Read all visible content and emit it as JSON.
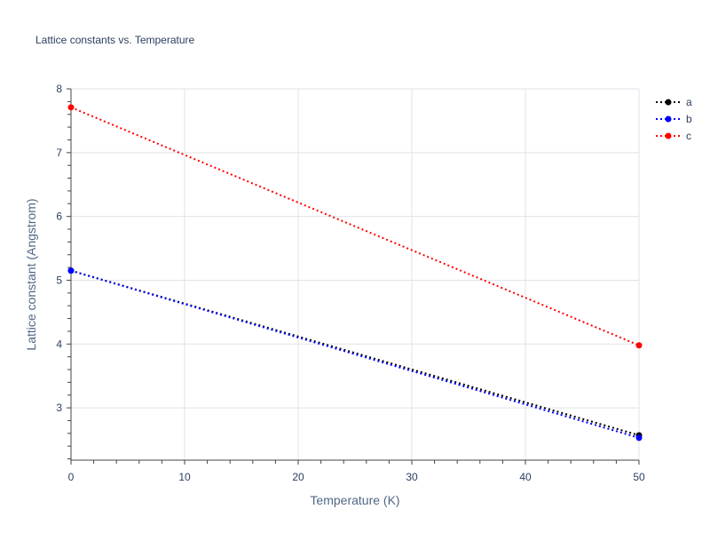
{
  "chart_data": {
    "type": "line",
    "title": "Lattice constants vs. Temperature",
    "xlabel": "Temperature (K)",
    "ylabel": "Lattice constant (Angstrom)",
    "xlim": [
      0,
      50
    ],
    "ylim": [
      2.18,
      8.0
    ],
    "x_ticks": [
      0,
      10,
      20,
      30,
      40,
      50
    ],
    "y_ticks": [
      3,
      4,
      5,
      6,
      7,
      8
    ],
    "grid": true,
    "legend_position": "top-right",
    "line_style": "dotted-with-markers",
    "series": [
      {
        "name": "a",
        "color": "#000000",
        "x": [
          0,
          50
        ],
        "y": [
          5.15,
          2.57
        ]
      },
      {
        "name": "b",
        "color": "#0000ff",
        "x": [
          0,
          50
        ],
        "y": [
          5.15,
          2.53
        ]
      },
      {
        "name": "c",
        "color": "#ff0000",
        "x": [
          0,
          50
        ],
        "y": [
          7.71,
          3.98
        ]
      }
    ]
  }
}
